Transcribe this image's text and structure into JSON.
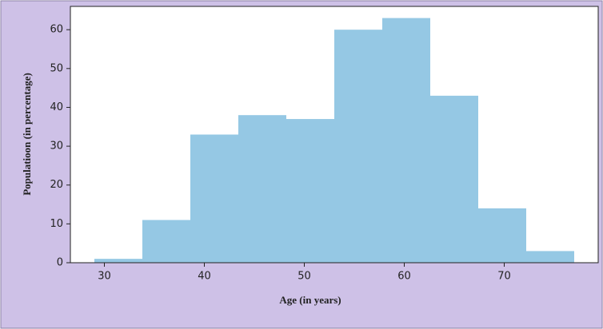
{
  "chart_data": {
    "type": "histogram",
    "xlabel": "Age (in years)",
    "ylabel": "Populatioon (in percentage)",
    "bins": [
      29,
      33.8,
      38.6,
      43.4,
      48.2,
      53,
      57.8,
      62.6,
      67.4,
      72.2,
      77
    ],
    "values": [
      1,
      11,
      33,
      38,
      37,
      60,
      63,
      43,
      14,
      3
    ],
    "color": "#95c8e4",
    "xlim": [
      26.6,
      79.4
    ],
    "xticks": [
      30,
      40,
      50,
      60,
      70
    ],
    "ylim": [
      0,
      66
    ],
    "yticks": [
      0,
      10,
      20,
      30,
      40,
      50,
      60
    ],
    "grid": false
  }
}
